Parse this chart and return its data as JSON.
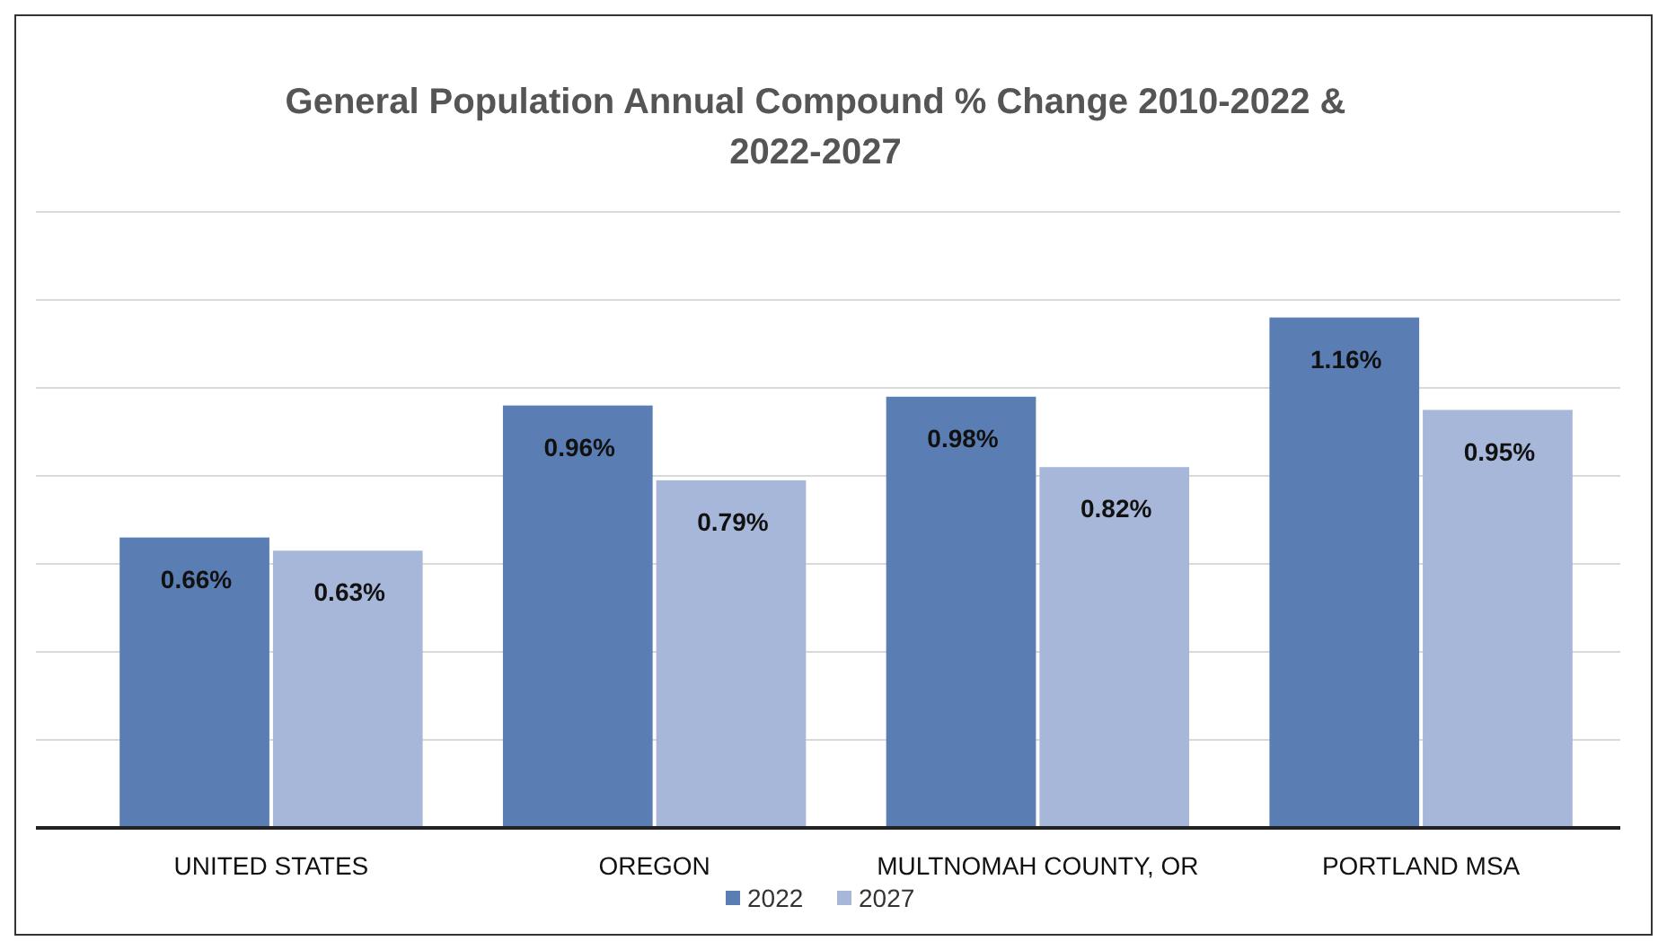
{
  "chart_data": {
    "type": "bar",
    "title": "General Population Annual Compound % Change 2010-2022 & 2022-2027",
    "categories": [
      "UNITED STATES",
      "OREGON",
      "MULTNOMAH COUNTY, OR",
      "PORTLAND MSA"
    ],
    "series": [
      {
        "name": "2022",
        "color": "#5a7db3",
        "values": [
          0.66,
          0.96,
          0.98,
          1.16
        ],
        "value_labels": [
          "0.66%",
          "0.96%",
          "0.98%",
          "1.16%"
        ]
      },
      {
        "name": "2027",
        "color": "#a7b7d9",
        "values": [
          0.63,
          0.79,
          0.82,
          0.95
        ],
        "value_labels": [
          "0.63%",
          "0.79%",
          "0.82%",
          "0.95%"
        ]
      }
    ],
    "ylim": [
      0,
      1.4
    ],
    "yticks": [
      {
        "value": 0,
        "label": null
      },
      {
        "value": 0.2,
        "label": null
      },
      {
        "value": 0.4,
        "label": null
      },
      {
        "value": 0.6,
        "label": null
      },
      {
        "value": 0.8,
        "label": null
      },
      {
        "value": 1.0,
        "label": null
      },
      {
        "value": 1.2,
        "label": null
      },
      {
        "value": 1.4,
        "label": null
      }
    ],
    "grid": "y",
    "legend": "bottom"
  }
}
